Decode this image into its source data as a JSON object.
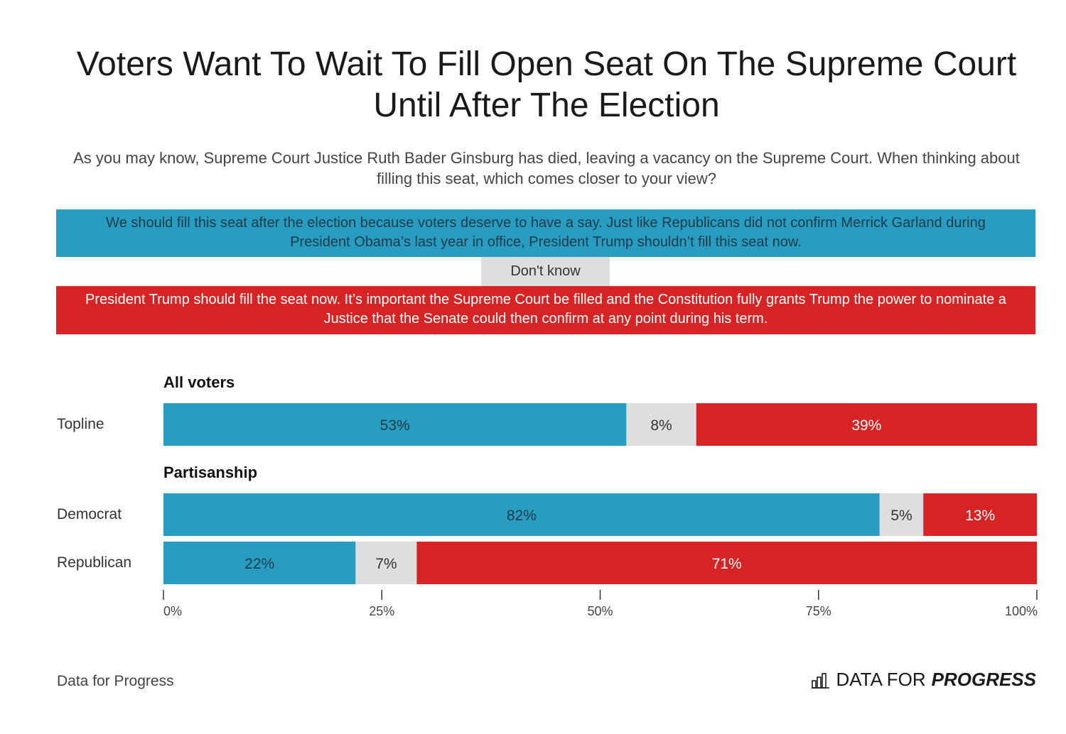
{
  "title": "Voters Want To Wait To Fill Open Seat On The Supreme Court Until After The Election",
  "subtitle": "As you may know, Supreme Court Justice Ruth Bader Ginsburg has died, leaving a vacancy on the Supreme Court. When thinking about filling this seat, which comes closer to your view?",
  "legend": {
    "after_election": "We should fill this seat after the election because voters deserve to have a say. Just like Republicans did not confirm Merrick Garland during President Obama’s last year in office, President Trump shouldn’t fill this seat now.",
    "dont_know": "Don't know",
    "fill_now": "President Trump should fill the seat now. It’s important the Supreme Court be filled and the Constitution fully grants Trump the power to nominate a Justice that the Senate could then confirm at any point during his term."
  },
  "groups": {
    "all_voters": "All voters",
    "partisanship": "Partisanship"
  },
  "colors": {
    "after_election": "#289dc1",
    "dont_know": "#dedede",
    "fill_now": "#d62424"
  },
  "footer": {
    "source": "Data for Progress",
    "logo_regular": "DATA FOR",
    "logo_bold": "PROGRESS",
    "logo_icon": "bar-chart-icon"
  },
  "chart_data": {
    "type": "bar",
    "stacked": true,
    "orientation": "horizontal",
    "categories": [
      "Topline",
      "Democrat",
      "Republican"
    ],
    "series": [
      {
        "name": "We should fill this seat after the election",
        "values": [
          53,
          82,
          22
        ]
      },
      {
        "name": "Don't know",
        "values": [
          8,
          5,
          7
        ]
      },
      {
        "name": "President Trump should fill the seat now",
        "values": [
          39,
          13,
          71
        ]
      }
    ],
    "value_labels": [
      [
        "53%",
        "8%",
        "39%"
      ],
      [
        "82%",
        "5%",
        "13%"
      ],
      [
        "22%",
        "7%",
        "71%"
      ]
    ],
    "xlim": [
      0,
      100
    ],
    "xticks": [
      0,
      25,
      50,
      75,
      100
    ],
    "xtick_labels": [
      "0%",
      "25%",
      "50%",
      "75%",
      "100%"
    ],
    "grid": false,
    "legend": "top"
  }
}
